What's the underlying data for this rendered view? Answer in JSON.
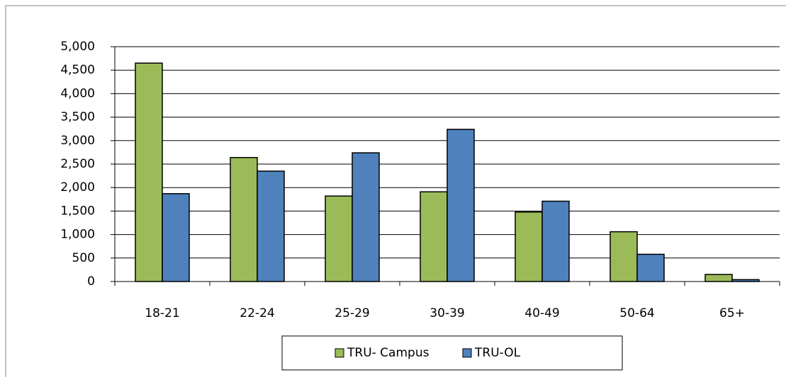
{
  "chart_data": {
    "type": "bar",
    "categories": [
      "18-21",
      "22-24",
      "25-29",
      "30-39",
      "40-49",
      "50-64",
      "65+"
    ],
    "series": [
      {
        "name": "TRU- Campus",
        "color": "#9bbb59",
        "values": [
          4650,
          2640,
          1820,
          1910,
          1480,
          1060,
          150
        ]
      },
      {
        "name": "TRU-OL",
        "color": "#4f81bd",
        "values": [
          1870,
          2350,
          2740,
          3240,
          1710,
          580,
          40
        ]
      }
    ],
    "ylim": [
      0,
      5000
    ],
    "yticks": [
      0,
      500,
      {
        "value": 1000,
        "label": "1,000"
      },
      {
        "value": 1500,
        "label": "1,500"
      },
      {
        "value": 2000,
        "label": "2,000"
      },
      {
        "value": 2500,
        "label": "2,500"
      },
      {
        "value": 3000,
        "label": "3,000"
      },
      {
        "value": 3500,
        "label": "3,500"
      },
      {
        "value": 4000,
        "label": "4,000"
      },
      {
        "value": 4500,
        "label": "4,500"
      },
      {
        "value": 5000,
        "label": "5,000"
      }
    ],
    "grid": true,
    "legend": "bottom"
  }
}
